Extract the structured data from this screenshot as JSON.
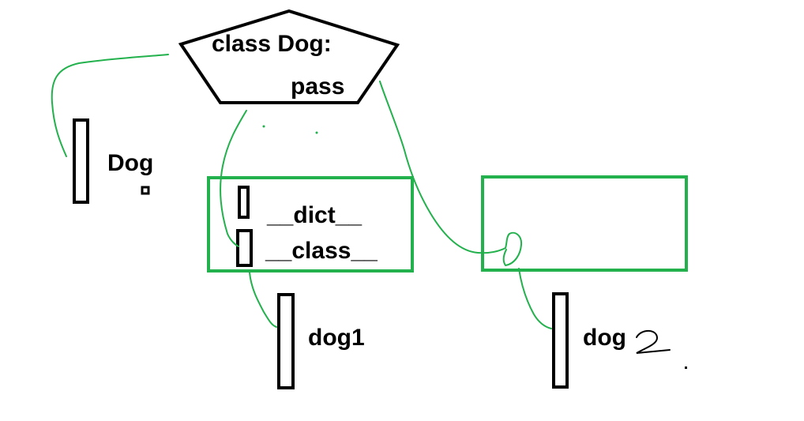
{
  "diagram": {
    "class_def": {
      "line1": "class Dog:",
      "line2": "pass"
    },
    "class_var_label": "Dog",
    "instance1": {
      "dict_label": "__dict__",
      "class_label": "__class__",
      "var_label": "dog1"
    },
    "instance2": {
      "var_label": "dog"
    },
    "colors": {
      "ink": "#000000",
      "connector": "#22b14c",
      "background": "#ffffff"
    }
  }
}
